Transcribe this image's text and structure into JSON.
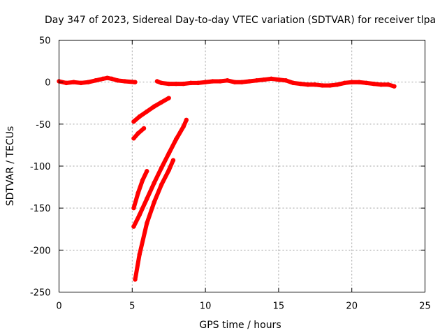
{
  "chart_data": {
    "type": "line",
    "title": "Day 347 of 2023, Sidereal Day-to-day VTEC variation (SDTVAR) for receiver tlpa",
    "xlabel": "GPS time / hours",
    "ylabel": "SDTVAR / TECUs",
    "xlim": [
      0,
      25
    ],
    "ylim": [
      -250,
      50
    ],
    "xticks": [
      0,
      5,
      10,
      15,
      20,
      25
    ],
    "yticks": [
      50,
      0,
      -50,
      -100,
      -150,
      -200,
      -250
    ],
    "grid": true,
    "legend": "none",
    "color": "#ff0000",
    "series": [
      {
        "x": [
          0,
          0.5,
          1,
          1.5,
          2,
          2.5,
          3,
          3.3,
          3.6,
          4,
          4.5,
          5.2
        ],
        "y": [
          1,
          -1,
          0,
          -1,
          0,
          2,
          4,
          5,
          4,
          2,
          1,
          0
        ]
      },
      {
        "x": [
          6.7,
          7,
          7.5,
          8,
          8.5,
          9,
          9.5,
          10,
          10.5,
          11,
          11.5,
          12,
          12.5,
          13,
          13.5,
          14,
          14.5,
          15,
          15.5,
          16,
          16.5,
          17,
          17.5,
          18,
          18.5,
          19,
          19.5,
          20,
          20.5,
          21,
          21.5,
          22,
          22.5,
          22.9
        ],
        "y": [
          1,
          -1,
          -2,
          -2,
          -2,
          -1,
          -1,
          0,
          1,
          1,
          2,
          0,
          0,
          1,
          2,
          3,
          4,
          3,
          2,
          -1,
          -2,
          -3,
          -3,
          -4,
          -4,
          -3,
          -1,
          0,
          0,
          -1,
          -2,
          -3,
          -3,
          -5
        ]
      },
      {
        "x": [
          5.1,
          5.5,
          6,
          6.5,
          7,
          7.5
        ],
        "y": [
          -47,
          -41,
          -35,
          -29,
          -24,
          -19
        ]
      },
      {
        "x": [
          5.1,
          5.4,
          5.8
        ],
        "y": [
          -67,
          -61,
          -55
        ]
      },
      {
        "x": [
          5.1,
          5.4,
          5.7,
          6.0
        ],
        "y": [
          -150,
          -132,
          -117,
          -106
        ]
      },
      {
        "x": [
          5.1,
          5.5,
          6,
          6.5,
          7,
          7.5,
          8,
          8.5,
          8.7
        ],
        "y": [
          -172,
          -158,
          -139,
          -120,
          -102,
          -85,
          -68,
          -53,
          -45
        ]
      },
      {
        "x": [
          5.2,
          5.5,
          6,
          6.5,
          7,
          7.5,
          7.8
        ],
        "y": [
          -235,
          -205,
          -168,
          -143,
          -122,
          -105,
          -93
        ]
      }
    ]
  }
}
